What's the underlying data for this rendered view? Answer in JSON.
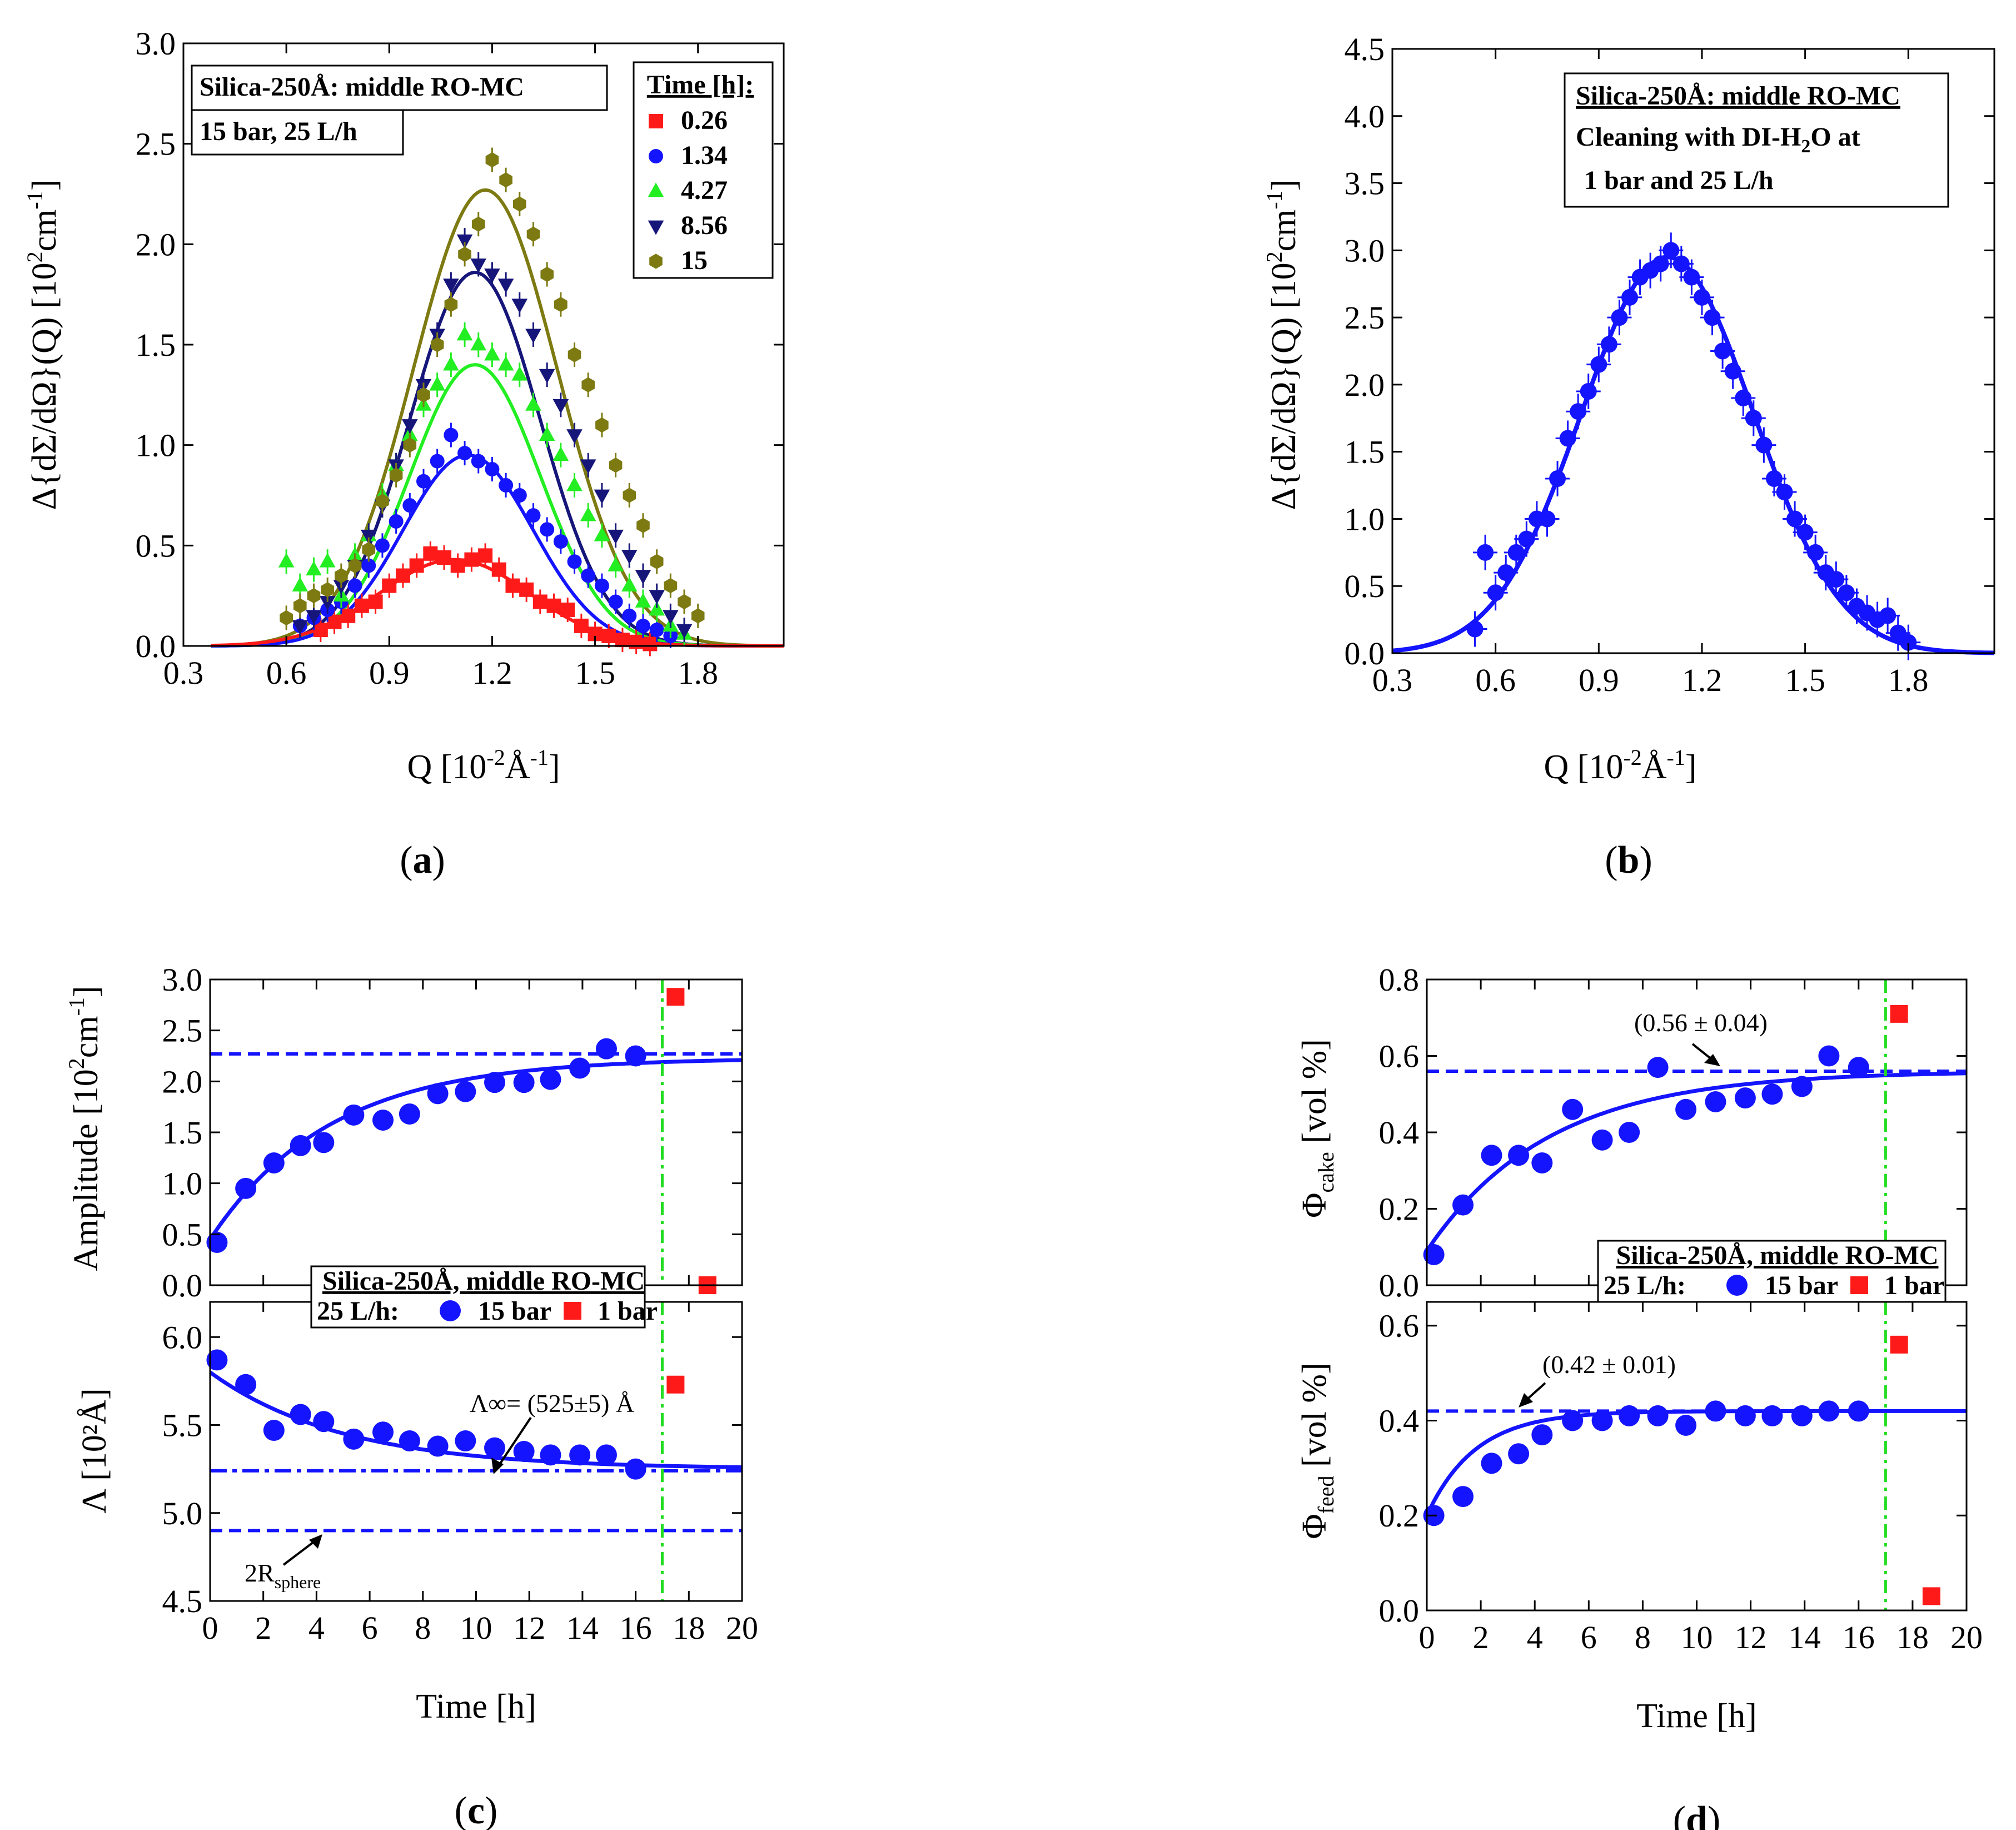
{
  "colors": {
    "red": "#ff1a1a",
    "blue": "#1414ff",
    "green": "#22ee22",
    "navy": "#16167a",
    "olive": "#7d7a12",
    "green_dashdot": "#22dd22"
  },
  "chart_data": [
    {
      "id": "a",
      "type": "scatter",
      "caption": "a",
      "xlabel": "Q [10⁻²Å⁻¹]",
      "ylabel": "Δ{dΣ/dΩ}(Q) [10²cm⁻¹]",
      "xlim": [
        0.3,
        2.05
      ],
      "ylim": [
        0.0,
        3.0
      ],
      "xticks": [
        "0.3",
        "0.6",
        "0.9",
        "1.2",
        "1.5",
        "1.8"
      ],
      "yticks": [
        "0.0",
        "0.5",
        "1.0",
        "1.5",
        "2.0",
        "2.5",
        "3.0"
      ],
      "info_box": [
        "Silica-250Å: middle RO-MC",
        "15 bar, 25 L/h"
      ],
      "legend_title": "Time [h]:",
      "series": [
        {
          "name": "0.26",
          "marker": "square",
          "color": "red",
          "fit": {
            "amplitude": 0.43,
            "center": 1.09,
            "sigma": 0.22
          },
          "q": [
            0.7,
            0.74,
            0.78,
            0.82,
            0.86,
            0.9,
            0.94,
            0.98,
            1.02,
            1.06,
            1.1,
            1.14,
            1.18,
            1.22,
            1.26,
            1.3,
            1.34,
            1.38,
            1.42,
            1.46,
            1.5,
            1.54,
            1.58,
            1.62,
            1.66
          ],
          "i": [
            0.08,
            0.12,
            0.15,
            0.2,
            0.22,
            0.3,
            0.35,
            0.4,
            0.46,
            0.44,
            0.4,
            0.43,
            0.45,
            0.38,
            0.3,
            0.28,
            0.22,
            0.2,
            0.18,
            0.1,
            0.06,
            0.05,
            0.03,
            0.02,
            0.01
          ]
        },
        {
          "name": "1.34",
          "marker": "circle",
          "color": "blue",
          "fit": {
            "amplitude": 0.95,
            "center": 1.13,
            "sigma": 0.19
          },
          "q": [
            0.64,
            0.68,
            0.72,
            0.76,
            0.8,
            0.84,
            0.88,
            0.92,
            0.96,
            1.0,
            1.04,
            1.08,
            1.12,
            1.16,
            1.2,
            1.24,
            1.28,
            1.32,
            1.36,
            1.4,
            1.44,
            1.48,
            1.52,
            1.56,
            1.6,
            1.64,
            1.68,
            1.72
          ],
          "i": [
            0.1,
            0.14,
            0.18,
            0.22,
            0.3,
            0.4,
            0.5,
            0.62,
            0.7,
            0.82,
            0.92,
            1.05,
            0.96,
            0.92,
            0.88,
            0.8,
            0.75,
            0.65,
            0.58,
            0.52,
            0.42,
            0.35,
            0.3,
            0.22,
            0.15,
            0.1,
            0.08,
            0.05
          ]
        },
        {
          "name": "4.27",
          "marker": "triangle-up",
          "color": "green",
          "fit": {
            "amplitude": 1.4,
            "center": 1.15,
            "sigma": 0.19
          },
          "q": [
            0.6,
            0.64,
            0.68,
            0.72,
            0.76,
            0.8,
            0.84,
            0.88,
            0.92,
            0.96,
            1.0,
            1.04,
            1.08,
            1.12,
            1.16,
            1.2,
            1.24,
            1.28,
            1.32,
            1.36,
            1.4,
            1.44,
            1.48,
            1.52,
            1.56,
            1.6,
            1.64,
            1.68,
            1.72,
            1.76
          ],
          "i": [
            0.42,
            0.3,
            0.38,
            0.42,
            0.25,
            0.45,
            0.55,
            0.75,
            0.9,
            1.05,
            1.2,
            1.3,
            1.4,
            1.55,
            1.5,
            1.45,
            1.4,
            1.35,
            1.2,
            1.05,
            0.95,
            0.8,
            0.65,
            0.55,
            0.4,
            0.3,
            0.22,
            0.18,
            0.1,
            0.06
          ]
        },
        {
          "name": "8.56",
          "marker": "triangle-down",
          "color": "navy",
          "fit": {
            "amplitude": 1.86,
            "center": 1.15,
            "sigma": 0.19
          },
          "q": [
            0.64,
            0.68,
            0.72,
            0.76,
            0.8,
            0.84,
            0.88,
            0.92,
            0.96,
            1.0,
            1.04,
            1.08,
            1.12,
            1.16,
            1.2,
            1.24,
            1.28,
            1.32,
            1.36,
            1.4,
            1.44,
            1.48,
            1.52,
            1.56,
            1.6,
            1.64,
            1.68,
            1.72,
            1.76
          ],
          "i": [
            0.1,
            0.15,
            0.22,
            0.3,
            0.4,
            0.55,
            0.7,
            0.9,
            1.1,
            1.3,
            1.55,
            1.8,
            2.02,
            1.9,
            1.85,
            1.8,
            1.7,
            1.55,
            1.35,
            1.2,
            1.05,
            0.9,
            0.75,
            0.55,
            0.45,
            0.35,
            0.25,
            0.15,
            0.08
          ]
        },
        {
          "name": "15",
          "marker": "hexagon",
          "color": "olive",
          "fit": {
            "amplitude": 2.27,
            "center": 1.18,
            "sigma": 0.21
          },
          "q": [
            0.6,
            0.64,
            0.68,
            0.72,
            0.76,
            0.8,
            0.84,
            0.88,
            0.92,
            0.96,
            1.0,
            1.04,
            1.08,
            1.12,
            1.16,
            1.2,
            1.24,
            1.28,
            1.32,
            1.36,
            1.4,
            1.44,
            1.48,
            1.52,
            1.56,
            1.6,
            1.64,
            1.68,
            1.72,
            1.76,
            1.8
          ],
          "i": [
            0.14,
            0.2,
            0.25,
            0.28,
            0.35,
            0.4,
            0.48,
            0.72,
            0.85,
            1.0,
            1.25,
            1.5,
            1.7,
            1.95,
            2.1,
            2.42,
            2.32,
            2.2,
            2.05,
            1.85,
            1.7,
            1.45,
            1.3,
            1.1,
            0.9,
            0.75,
            0.6,
            0.42,
            0.3,
            0.22,
            0.15
          ]
        }
      ]
    },
    {
      "id": "b",
      "type": "scatter",
      "caption": "b",
      "xlabel": "Q [10⁻²Å⁻¹]",
      "ylabel": "Δ{dΣ/dΩ}(Q) [10²cm⁻¹]",
      "xlim": [
        0.3,
        2.05
      ],
      "ylim": [
        0.0,
        4.5
      ],
      "xticks": [
        "0.3",
        "0.6",
        "0.9",
        "1.2",
        "1.5",
        "1.8"
      ],
      "yticks": [
        "0.0",
        "0.5",
        "1.0",
        "1.5",
        "2.0",
        "2.5",
        "3.0",
        "3.5",
        "4.0",
        "4.5"
      ],
      "info_box": [
        "Silica-250Å: middle RO-MC",
        "Cleaning with DI-H₂O at",
        "1 bar and 25 L/h"
      ],
      "series": [
        {
          "name": "cleaning",
          "marker": "circle",
          "color": "blue",
          "fit": {
            "amplitude": 2.95,
            "center": 1.1,
            "sigma": 0.25
          },
          "q": [
            0.54,
            0.57,
            0.6,
            0.63,
            0.66,
            0.69,
            0.72,
            0.75,
            0.78,
            0.81,
            0.84,
            0.87,
            0.9,
            0.93,
            0.96,
            0.99,
            1.02,
            1.05,
            1.08,
            1.11,
            1.14,
            1.17,
            1.2,
            1.23,
            1.26,
            1.29,
            1.32,
            1.35,
            1.38,
            1.41,
            1.44,
            1.47,
            1.5,
            1.53,
            1.56,
            1.59,
            1.62,
            1.65,
            1.68,
            1.71,
            1.74,
            1.77,
            1.8
          ],
          "i": [
            0.18,
            0.75,
            0.45,
            0.6,
            0.75,
            0.85,
            1.0,
            1.0,
            1.3,
            1.6,
            1.8,
            1.95,
            2.15,
            2.3,
            2.5,
            2.65,
            2.8,
            2.85,
            2.9,
            3.0,
            2.9,
            2.8,
            2.65,
            2.5,
            2.25,
            2.1,
            1.9,
            1.75,
            1.55,
            1.3,
            1.2,
            1.0,
            0.9,
            0.75,
            0.6,
            0.55,
            0.45,
            0.35,
            0.3,
            0.25,
            0.28,
            0.15,
            0.08
          ]
        }
      ]
    },
    {
      "id": "c",
      "type": "scatter",
      "caption": "c",
      "xlabel": "Time [h]",
      "xlim": [
        0,
        20
      ],
      "xticks": [
        "0",
        "2",
        "4",
        "6",
        "8",
        "10",
        "12",
        "14",
        "16",
        "18",
        "20"
      ],
      "vline_x": 17,
      "legend": {
        "title": "Silica-250Å, middle RO-MC",
        "prefix": "25 L/h:",
        "items": [
          "15 bar",
          "1 bar"
        ]
      },
      "top": {
        "ylabel": "Amplitude [10²cm⁻¹]",
        "ylim": [
          0.0,
          3.0
        ],
        "yticks": [
          "0.0",
          "0.5",
          "1.0",
          "1.5",
          "2.0",
          "2.5",
          "3.0"
        ],
        "dashed_y": 2.27,
        "fit": {
          "y_inf": 2.23,
          "y0": 0.45,
          "tau": 4.5
        },
        "series_15bar": {
          "t": [
            0.26,
            1.34,
            2.4,
            3.4,
            4.27,
            5.4,
            6.5,
            7.5,
            8.56,
            9.6,
            10.7,
            11.8,
            12.8,
            13.9,
            14.9,
            16.0
          ],
          "y": [
            0.42,
            0.95,
            1.2,
            1.37,
            1.4,
            1.67,
            1.62,
            1.68,
            1.88,
            1.9,
            1.99,
            1.99,
            2.02,
            2.13,
            2.32,
            2.25
          ]
        },
        "series_1bar": {
          "t": [
            17.5,
            18.7
          ],
          "y": [
            2.83,
            0.0
          ]
        }
      },
      "bottom": {
        "ylabel": "Λ [10²Å]",
        "ylim": [
          4.5,
          6.2
        ],
        "yticks": [
          "4.5",
          "5.0",
          "5.5",
          "6.0"
        ],
        "dashdot_y": 5.24,
        "dashed_y": 4.9,
        "fit": {
          "y_inf": 5.25,
          "y0": 5.8,
          "tau": 5.0
        },
        "annotation_lambda": "Λ∞= (525±5) Å",
        "annotation_sphere": "2R",
        "annotation_sphere_sub": "sphere",
        "series_15bar": {
          "t": [
            0.26,
            1.34,
            2.4,
            3.4,
            4.27,
            5.4,
            6.5,
            7.5,
            8.56,
            9.6,
            10.7,
            11.8,
            12.8,
            13.9,
            14.9,
            16.0
          ],
          "y": [
            5.87,
            5.73,
            5.47,
            5.56,
            5.52,
            5.42,
            5.46,
            5.41,
            5.38,
            5.41,
            5.37,
            5.35,
            5.33,
            5.33,
            5.33,
            5.25
          ]
        },
        "series_1bar": {
          "t": [
            17.5
          ],
          "y": [
            5.73
          ]
        }
      }
    },
    {
      "id": "d",
      "type": "scatter",
      "caption": "d",
      "xlabel": "Time [h]",
      "xlim": [
        0,
        20
      ],
      "xticks": [
        "0",
        "2",
        "4",
        "6",
        "8",
        "10",
        "12",
        "14",
        "16",
        "18",
        "20"
      ],
      "vline_x": 17,
      "legend": {
        "title": "Silica-250Å, middle RO-MC",
        "prefix": "25 L/h:",
        "items": [
          "15 bar",
          "1 bar"
        ]
      },
      "top": {
        "ylabel": "Φcake [vol %]",
        "ylim": [
          0.0,
          0.8
        ],
        "yticks": [
          "0.0",
          "0.2",
          "0.4",
          "0.6",
          "0.8"
        ],
        "dashed_y": 0.56,
        "fit": {
          "y_inf": 0.56,
          "y0": 0.09,
          "tau": 4.5
        },
        "annotation": "(0.56 ± 0.04)",
        "series_15bar": {
          "t": [
            0.26,
            1.34,
            2.4,
            3.4,
            4.27,
            5.4,
            6.5,
            7.5,
            8.56,
            9.6,
            10.7,
            11.8,
            12.8,
            13.9,
            14.9,
            16.0
          ],
          "y": [
            0.08,
            0.21,
            0.34,
            0.34,
            0.32,
            0.46,
            0.38,
            0.4,
            0.57,
            0.46,
            0.48,
            0.49,
            0.5,
            0.52,
            0.6,
            0.57
          ]
        },
        "series_1bar": {
          "t": [
            17.5
          ],
          "y": [
            0.71
          ]
        }
      },
      "bottom": {
        "ylabel": "Φfeed [vol %]",
        "ylim": [
          0.0,
          0.65
        ],
        "yticks": [
          "0.0",
          "0.2",
          "0.4",
          "0.6"
        ],
        "dashed_y": 0.42,
        "fit": {
          "y_inf": 0.42,
          "y0": 0.2,
          "tau": 1.8
        },
        "annotation": "(0.42 ± 0.01)",
        "series_15bar": {
          "t": [
            0.26,
            1.34,
            2.4,
            3.4,
            4.27,
            5.4,
            6.5,
            7.5,
            8.56,
            9.6,
            10.7,
            11.8,
            12.8,
            13.9,
            14.9,
            16.0
          ],
          "y": [
            0.2,
            0.24,
            0.31,
            0.33,
            0.37,
            0.4,
            0.4,
            0.41,
            0.41,
            0.39,
            0.42,
            0.41,
            0.41,
            0.41,
            0.42,
            0.42
          ]
        },
        "series_1bar": {
          "t": [
            17.5,
            18.7
          ],
          "y": [
            0.56,
            0.03
          ]
        }
      }
    }
  ]
}
